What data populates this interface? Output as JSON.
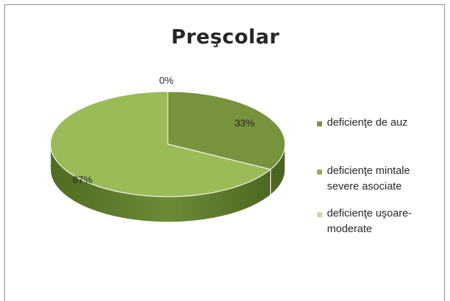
{
  "chart_data": {
    "type": "pie",
    "title": "Preşcolar",
    "categories": [
      "deficienţe  de auz",
      "deficienţe mintale severe asociate",
      "deficienţe uşoare-moderate"
    ],
    "values": [
      33,
      0,
      67
    ],
    "data_labels": [
      "33%",
      "0%",
      "67%"
    ],
    "colors": [
      "#77933c",
      "#8db04a",
      "#9bbb59"
    ],
    "legend_position": "right",
    "style": "3d"
  },
  "legend": [
    {
      "label": "deficienţe  de auz",
      "color": "#77933c"
    },
    {
      "label": "deficienţe mintale severe asociate",
      "color": "#8db04a"
    },
    {
      "label": "deficienţe uşoare-moderate",
      "color": "#c4d79b"
    }
  ]
}
